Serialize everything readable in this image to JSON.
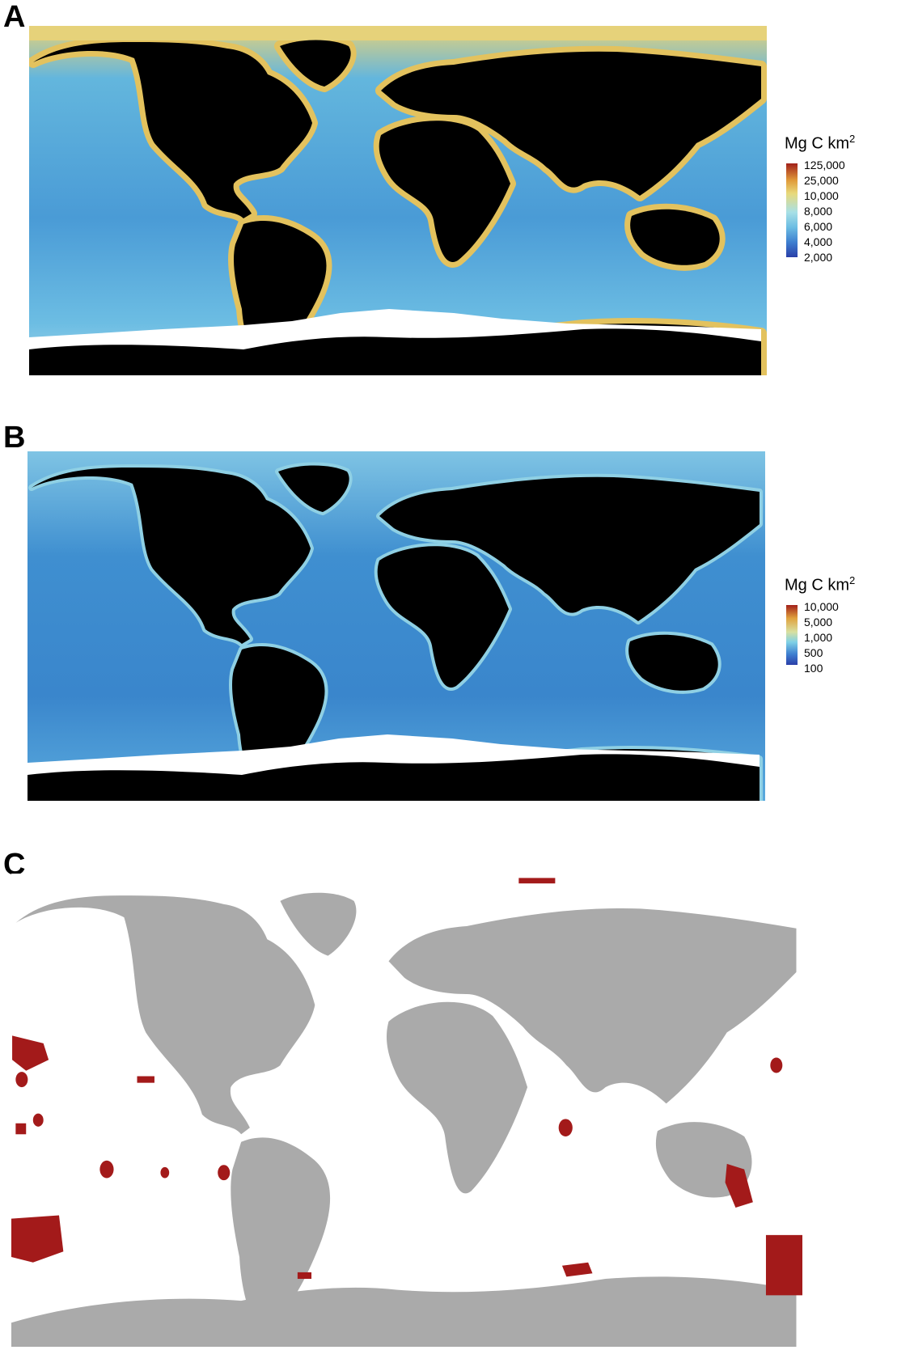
{
  "panels": [
    {
      "letter": "A",
      "legend_title": "Mg C km",
      "legend_title_sup": "2",
      "legend_ticks": [
        "125,000",
        "25,000",
        "10,000",
        "8,000",
        "6,000",
        "4,000",
        "2,000"
      ],
      "ocean_color": "#5aaadd",
      "coast_color": "#e8c76a",
      "land_color": "#000000"
    },
    {
      "letter": "B",
      "legend_title": "Mg C km",
      "legend_title_sup": "2",
      "legend_ticks": [
        "10,000",
        "5,000",
        "1,000",
        "500",
        "100"
      ],
      "ocean_color": "#3f8fd0",
      "coast_color": "#9fd8e8",
      "land_color": "#000000"
    },
    {
      "letter": "C",
      "land_color": "#aaaaaa",
      "protected_color": "#a31a1a"
    }
  ],
  "colors": {
    "scale_low": "#2a3fa8",
    "scale_mid": "#7fd1e6",
    "scale_high": "#a2201a"
  }
}
